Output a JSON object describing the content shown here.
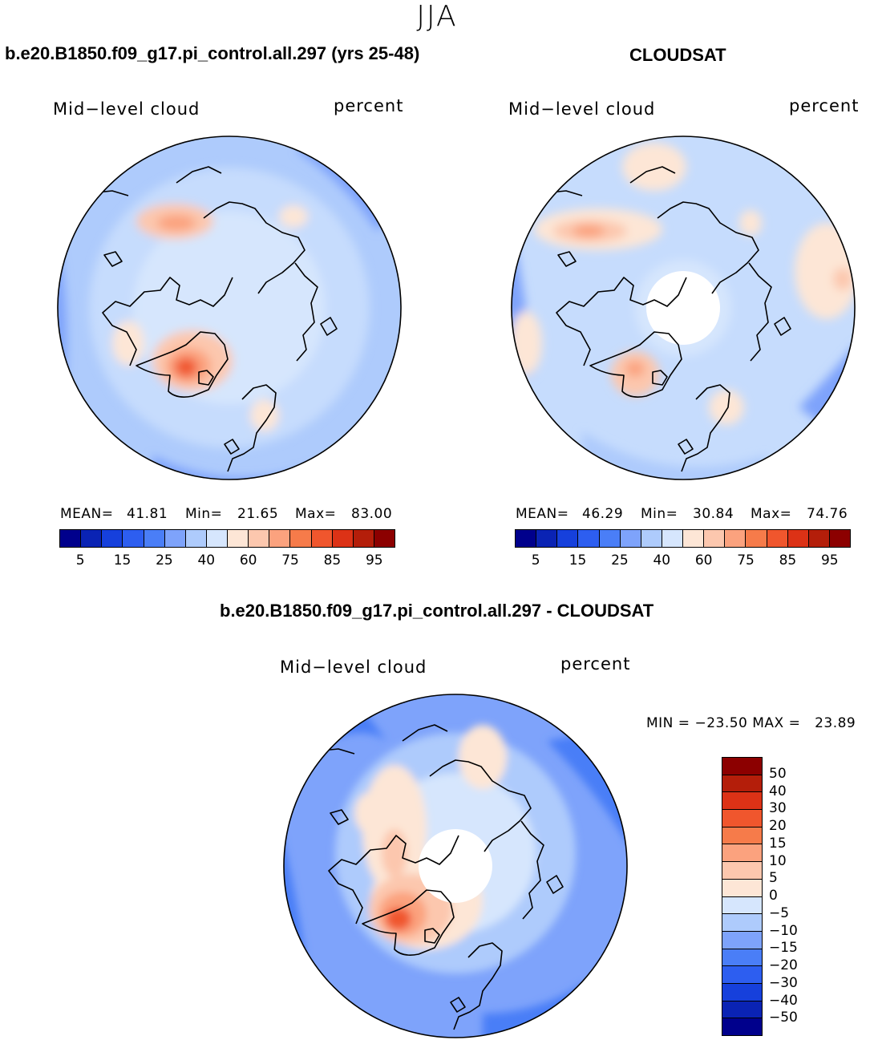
{
  "season": "JJA",
  "panel_left": {
    "title": "b.e20.B1850.f09_g17.pi_control.all.297 (yrs 25-48)",
    "variable": "Mid−level cloud",
    "units": "percent",
    "mean_label": "MEAN=",
    "mean_value": "41.81",
    "min_label": "Min=",
    "min_value": "21.65",
    "max_label": "Max=",
    "max_value": "83.00"
  },
  "panel_right": {
    "title": "CLOUDSAT",
    "variable": "Mid−level cloud",
    "units": "percent",
    "mean_label": "MEAN=",
    "mean_value": "46.29",
    "min_label": "Min=",
    "min_value": "30.84",
    "max_label": "Max=",
    "max_value": "74.76"
  },
  "panel_diff": {
    "title": "b.e20.B1850.f09_g17.pi_control.all.297 - CLOUDSAT",
    "variable": "Mid−level cloud",
    "units": "percent",
    "minmax_text": "MIN = −23.50 MAX =   23.89"
  },
  "colorbar_abs": {
    "tick_labels": [
      "5",
      "15",
      "25",
      "40",
      "60",
      "75",
      "85",
      "95"
    ],
    "colors": [
      "#00008c",
      "#0a23b4",
      "#1640dc",
      "#2d5ef0",
      "#4a7ef7",
      "#7ea3fb",
      "#aecbfc",
      "#d6e6fd",
      "#fde6d6",
      "#fcc7ae",
      "#fba27e",
      "#f67b4a",
      "#f0562d",
      "#dc3216",
      "#b41e0a",
      "#8c0000"
    ]
  },
  "colorbar_diff": {
    "tick_labels": [
      "50",
      "40",
      "30",
      "20",
      "15",
      "10",
      "5",
      "0",
      "−5",
      "−10",
      "−15",
      "−20",
      "−30",
      "−40",
      "−50"
    ],
    "colors": [
      "#8c0000",
      "#b41e0a",
      "#dc3216",
      "#f0562d",
      "#f67b4a",
      "#fba27e",
      "#fcc7ae",
      "#fde6d6",
      "#d6e6fd",
      "#aecbfc",
      "#7ea3fb",
      "#4a7ef7",
      "#2d5ef0",
      "#1640dc",
      "#0a23b4",
      "#00008c"
    ]
  }
}
